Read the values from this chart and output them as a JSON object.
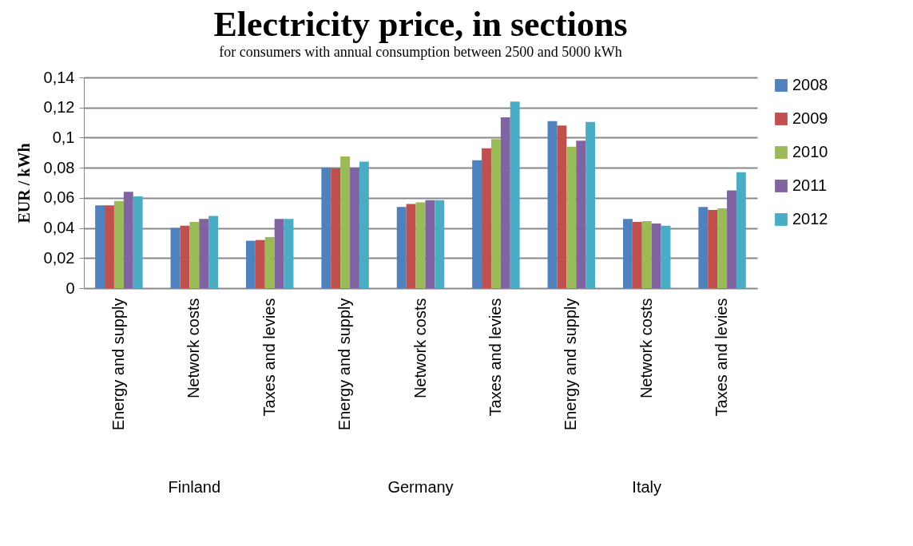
{
  "chart_data": {
    "type": "bar",
    "title": "Electricity price, in sections",
    "subtitle": "for consumers with annual consumption between 2500 and 5000 kWh",
    "ylabel": "EUR / kWh",
    "categories": [
      "Energy and supply",
      "Network costs",
      "Taxes and levies",
      "Energy and supply",
      "Network costs",
      "Taxes and levies",
      "Energy and supply",
      "Network costs",
      "Taxes and levies"
    ],
    "series": [
      {
        "name": "2008",
        "color": "#4f81bd",
        "values": [
          0.055,
          0.04,
          0.0315,
          0.08,
          0.054,
          0.085,
          0.111,
          0.046,
          0.054
        ]
      },
      {
        "name": "2009",
        "color": "#c0504d",
        "values": [
          0.055,
          0.0415,
          0.032,
          0.0795,
          0.056,
          0.093,
          0.108,
          0.044,
          0.052
        ]
      },
      {
        "name": "2010",
        "color": "#9bbb59",
        "values": [
          0.058,
          0.044,
          0.034,
          0.0875,
          0.057,
          0.099,
          0.094,
          0.0445,
          0.053
        ]
      },
      {
        "name": "2011",
        "color": "#8064a2",
        "values": [
          0.064,
          0.046,
          0.046,
          0.08,
          0.0585,
          0.1135,
          0.098,
          0.043,
          0.065
        ]
      },
      {
        "name": "2012",
        "color": "#4bacc6",
        "values": [
          0.061,
          0.048,
          0.046,
          0.084,
          0.0585,
          0.124,
          0.1105,
          0.0415,
          0.077
        ]
      }
    ],
    "ylim": [
      0,
      0.14
    ],
    "yticks": [
      0,
      {
        "value": 0.02,
        "label": "0,02"
      },
      {
        "value": 0.04,
        "label": "0,04"
      },
      {
        "value": 0.06,
        "label": "0,06"
      },
      {
        "value": 0.08,
        "label": "0,08"
      },
      {
        "value": 0.1,
        "label": "0,1"
      },
      {
        "value": 0.12,
        "label": "0,12"
      },
      {
        "value": 0.14,
        "label": "0,14"
      }
    ],
    "grid": "y",
    "legend": "right",
    "annotations": [
      "Finland",
      "Germany",
      "Italy"
    ]
  }
}
